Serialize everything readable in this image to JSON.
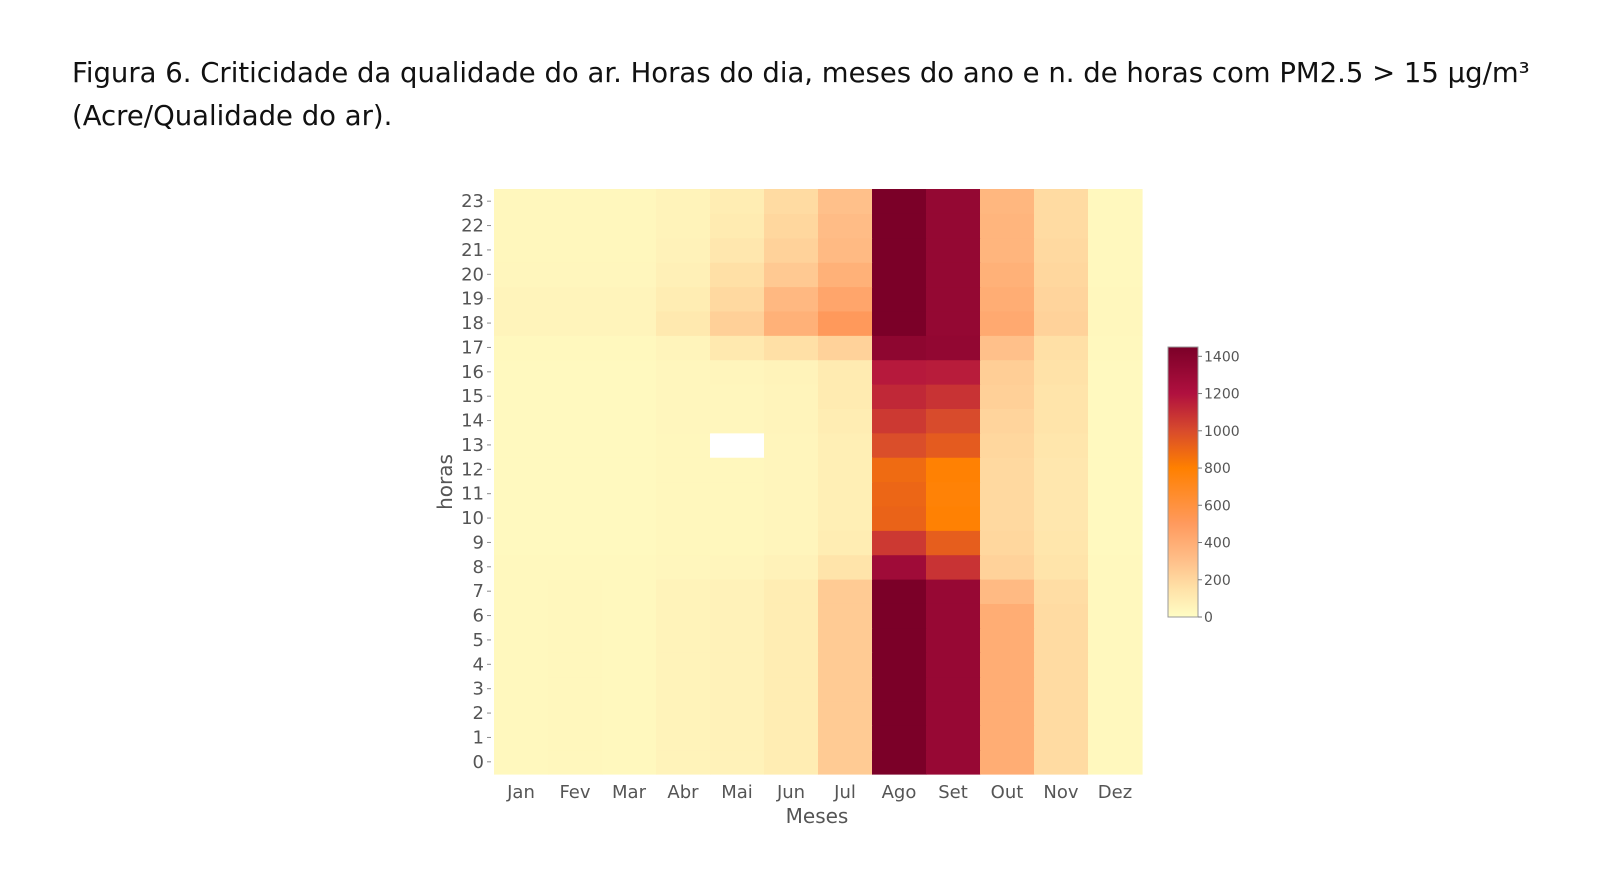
{
  "caption": {
    "line1": "Figura 6. Criticidade da qualidade do ar.  Horas do dia, meses do ano e n. de horas com PM2.5 > 15 µg/m³",
    "line2": "(Acre/Qualidade do ar)."
  },
  "chart_data": {
    "type": "heatmap",
    "xlabel": "Meses",
    "ylabel": "horas",
    "x": [
      "Jan",
      "Fev",
      "Mar",
      "Abr",
      "Mai",
      "Jun",
      "Jul",
      "Ago",
      "Set",
      "Out",
      "Nov",
      "Dez"
    ],
    "y": [
      "0",
      "1",
      "2",
      "3",
      "4",
      "5",
      "6",
      "7",
      "8",
      "9",
      "10",
      "11",
      "12",
      "13",
      "14",
      "15",
      "16",
      "17",
      "18",
      "19",
      "20",
      "21",
      "22",
      "23"
    ],
    "colorbar": {
      "min": 0,
      "max": 1450,
      "ticks": [
        0,
        200,
        400,
        600,
        800,
        1000,
        1200,
        1400
      ]
    },
    "colorscale": [
      [
        0,
        "#fffdc4"
      ],
      [
        150,
        "#ffe2a8"
      ],
      [
        300,
        "#ffc08a"
      ],
      [
        500,
        "#ff9a5e"
      ],
      [
        800,
        "#ff8000"
      ],
      [
        1000,
        "#d84b2c"
      ],
      [
        1200,
        "#b0103f"
      ],
      [
        1450,
        "#7b0028"
      ]
    ],
    "values": [
      [
        30,
        35,
        30,
        55,
        60,
        90,
        250,
        1450,
        1320,
        400,
        180,
        30
      ],
      [
        30,
        35,
        30,
        55,
        60,
        90,
        250,
        1450,
        1320,
        400,
        180,
        30
      ],
      [
        30,
        35,
        30,
        55,
        60,
        90,
        250,
        1450,
        1320,
        400,
        180,
        30
      ],
      [
        30,
        35,
        30,
        55,
        60,
        90,
        250,
        1450,
        1320,
        400,
        180,
        30
      ],
      [
        30,
        35,
        30,
        55,
        60,
        90,
        250,
        1450,
        1320,
        400,
        180,
        30
      ],
      [
        30,
        35,
        30,
        55,
        60,
        90,
        250,
        1450,
        1320,
        400,
        180,
        30
      ],
      [
        30,
        35,
        30,
        55,
        60,
        90,
        250,
        1450,
        1320,
        400,
        180,
        30
      ],
      [
        30,
        35,
        30,
        55,
        60,
        90,
        250,
        1450,
        1320,
        330,
        170,
        30
      ],
      [
        30,
        30,
        30,
        40,
        45,
        60,
        140,
        1280,
        1080,
        220,
        140,
        30
      ],
      [
        25,
        25,
        25,
        35,
        35,
        45,
        90,
        1060,
        930,
        200,
        130,
        25
      ],
      [
        25,
        25,
        25,
        35,
        35,
        45,
        80,
        910,
        790,
        190,
        120,
        25
      ],
      [
        25,
        25,
        25,
        35,
        35,
        45,
        80,
        900,
        780,
        190,
        120,
        25
      ],
      [
        25,
        25,
        25,
        35,
        35,
        45,
        80,
        880,
        790,
        190,
        120,
        25
      ],
      [
        25,
        25,
        25,
        35,
        null,
        45,
        80,
        990,
        940,
        200,
        130,
        25
      ],
      [
        25,
        25,
        25,
        40,
        40,
        50,
        90,
        1060,
        1000,
        210,
        140,
        25
      ],
      [
        25,
        25,
        25,
        40,
        40,
        50,
        100,
        1120,
        1080,
        230,
        140,
        25
      ],
      [
        25,
        25,
        25,
        40,
        45,
        55,
        100,
        1170,
        1160,
        240,
        150,
        25
      ],
      [
        30,
        30,
        30,
        50,
        110,
        160,
        220,
        1360,
        1340,
        300,
        160,
        30
      ],
      [
        50,
        50,
        50,
        110,
        230,
        380,
        510,
        1450,
        1330,
        420,
        220,
        35
      ],
      [
        50,
        50,
        50,
        90,
        190,
        340,
        440,
        1450,
        1330,
        400,
        210,
        35
      ],
      [
        40,
        40,
        40,
        70,
        160,
        260,
        380,
        1450,
        1330,
        380,
        200,
        30
      ],
      [
        35,
        35,
        35,
        60,
        120,
        220,
        330,
        1450,
        1330,
        360,
        190,
        30
      ],
      [
        35,
        35,
        35,
        55,
        100,
        200,
        320,
        1450,
        1330,
        360,
        180,
        30
      ],
      [
        35,
        35,
        35,
        55,
        90,
        180,
        300,
        1450,
        1330,
        350,
        180,
        30
      ]
    ]
  }
}
